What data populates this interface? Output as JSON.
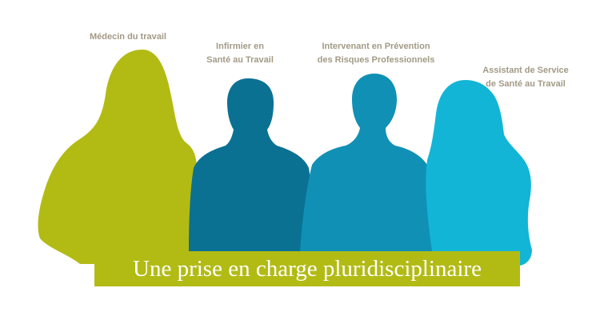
{
  "roles": {
    "medecin": {
      "line1": "Médecin du travail",
      "color": "#b2bb14"
    },
    "infirmier": {
      "line1": "Infirmier en",
      "line2": "Santé au Travail",
      "color": "#0a7193"
    },
    "ipr": {
      "line1": "Intervenant en Prévention",
      "line2": "des Risques Professionnels",
      "color": "#1190b5"
    },
    "assistant": {
      "line1": "Assistant de Service",
      "line2": "de Santé au Travail",
      "color": "#13b5d6"
    }
  },
  "banner": {
    "text": "Une prise en charge pluridisciplinaire",
    "background": "#b2bb14",
    "text_color": "#ffffff"
  },
  "label_color": "#a39a86"
}
